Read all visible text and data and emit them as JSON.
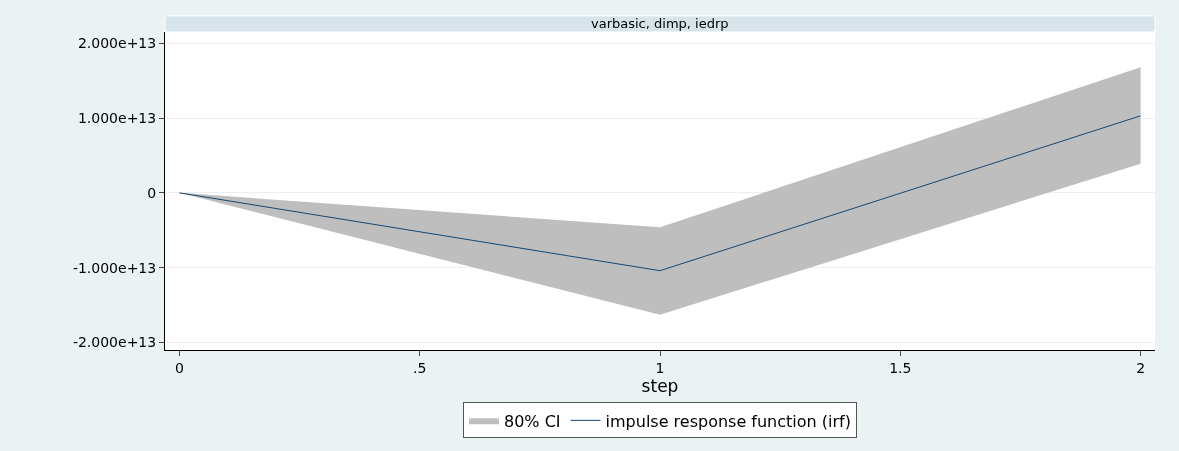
{
  "chart_data": {
    "type": "line",
    "title": "varbasic, dimp, iedrp",
    "xlabel": "step",
    "x": [
      0,
      1,
      2
    ],
    "series": [
      {
        "name": "80% CI",
        "type": "area",
        "color": "#bebebe",
        "values": [
          null,
          null,
          null
        ],
        "lower": [
          0,
          -16300000000000.0,
          3900000000000.0
        ],
        "upper": [
          0,
          -4600000000000.0,
          16800000000000.0
        ]
      },
      {
        "name": "impulse response function (irf)",
        "color": "#1a476f",
        "values": [
          0,
          -10400000000000.0,
          10300000000000.0
        ]
      }
    ],
    "xlim": [
      -0.03,
      2.03
    ],
    "xticks": [
      0,
      {
        "value": 0.5,
        "label": ".5"
      },
      1,
      {
        "value": 1.5,
        "label": "1.5"
      },
      2
    ],
    "ylim": [
      -21000000000000.0,
      21500000000000.0
    ],
    "yticks": [
      {
        "value": -20000000000000.0,
        "label": "-2.000e+13"
      },
      {
        "value": -10000000000000.0,
        "label": "-1.000e+13"
      },
      0,
      {
        "value": 10000000000000.0,
        "label": "1.000e+13"
      },
      {
        "value": 20000000000000.0,
        "label": "2.000e+13"
      }
    ],
    "grid": "y",
    "legend": "bottom"
  }
}
